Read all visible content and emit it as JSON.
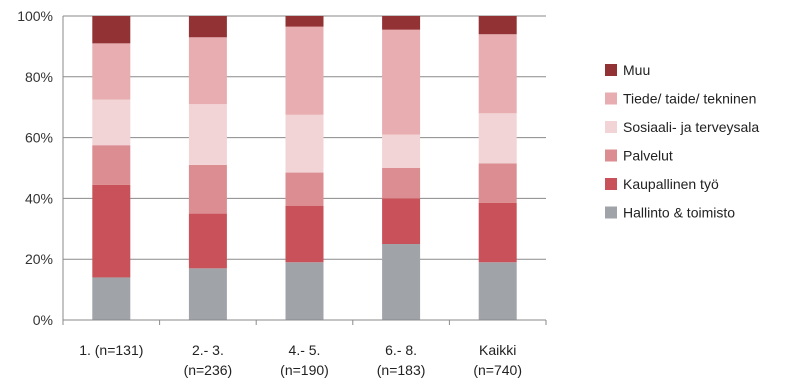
{
  "chart_data": {
    "type": "bar",
    "stacked": true,
    "percent": true,
    "categories": [
      [
        "1. (n=131)"
      ],
      [
        "2.- 3.",
        "(n=236)"
      ],
      [
        "4.- 5.",
        "(n=190)"
      ],
      [
        "6.- 8.",
        "(n=183)"
      ],
      [
        "Kaikki",
        "(n=740)"
      ]
    ],
    "y_ticks": [
      "0%",
      "20%",
      "40%",
      "60%",
      "80%",
      "100%"
    ],
    "ylim": [
      0,
      100
    ],
    "grid": true,
    "legend_position": "right",
    "series": [
      {
        "name": "Hallinto & toimisto",
        "color": "#a0a3a8",
        "values": [
          14,
          17,
          19,
          25,
          19
        ]
      },
      {
        "name": "Kaupallinen työ",
        "color": "#c9525a",
        "values": [
          30.5,
          18,
          18.5,
          15,
          19.5
        ]
      },
      {
        "name": "Palvelut",
        "color": "#dc8d91",
        "values": [
          13,
          16,
          11,
          10,
          13
        ]
      },
      {
        "name": "Sosiaali- ja terveysala",
        "color": "#f2d4d6",
        "values": [
          15,
          20,
          19,
          11,
          16.5
        ]
      },
      {
        "name": "Tiede/ taide/ tekninen",
        "color": "#e8adb0",
        "values": [
          18.5,
          22,
          29,
          34.5,
          26
        ]
      },
      {
        "name": "Muu",
        "color": "#933234",
        "values": [
          9,
          7,
          3.5,
          4.5,
          6
        ]
      }
    ]
  }
}
